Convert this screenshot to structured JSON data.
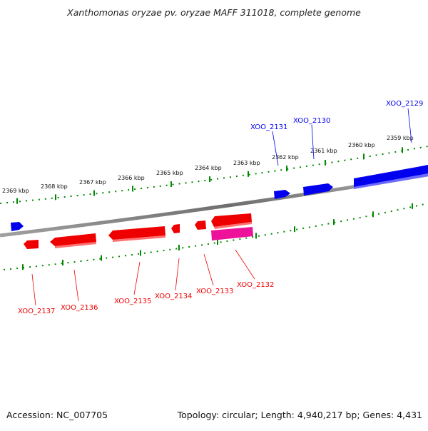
{
  "title": "Xanthomonas oryzae pv. oryzae MAFF 311018, complete genome",
  "footer": {
    "accession": "Accession: NC_007705",
    "topology": "Topology: circular; Length: 4,940,217 bp; Genes: 4,431"
  },
  "colors": {
    "forward_strand": "#0000ee",
    "reverse_strand": "#ee0000",
    "highlight_gene": "#ee1199",
    "tick": "#008800",
    "backbone": "#7a7a7a"
  },
  "scale_ticks": [
    {
      "label": "2359 kbp",
      "kbp": 2359
    },
    {
      "label": "2360 kbp",
      "kbp": 2360
    },
    {
      "label": "2361 kbp",
      "kbp": 2361
    },
    {
      "label": "2362 kbp",
      "kbp": 2362
    },
    {
      "label": "2363 kbp",
      "kbp": 2363
    },
    {
      "label": "2364 kbp",
      "kbp": 2364
    },
    {
      "label": "2365 kbp",
      "kbp": 2365
    },
    {
      "label": "2366 kbp",
      "kbp": 2366
    },
    {
      "label": "2367 kbp",
      "kbp": 2367
    },
    {
      "label": "2368 kbp",
      "kbp": 2368
    },
    {
      "label": "2369 kbp",
      "kbp": 2369
    }
  ],
  "forward_gene_labels": [
    {
      "name": "XOO_2129"
    },
    {
      "name": "XOO_2130"
    },
    {
      "name": "XOO_2131"
    }
  ],
  "reverse_gene_labels": [
    {
      "name": "XOO_2132"
    },
    {
      "name": "XOO_2133"
    },
    {
      "name": "XOO_2134"
    },
    {
      "name": "XOO_2135"
    },
    {
      "name": "XOO_2136"
    },
    {
      "name": "XOO_2137"
    }
  ]
}
